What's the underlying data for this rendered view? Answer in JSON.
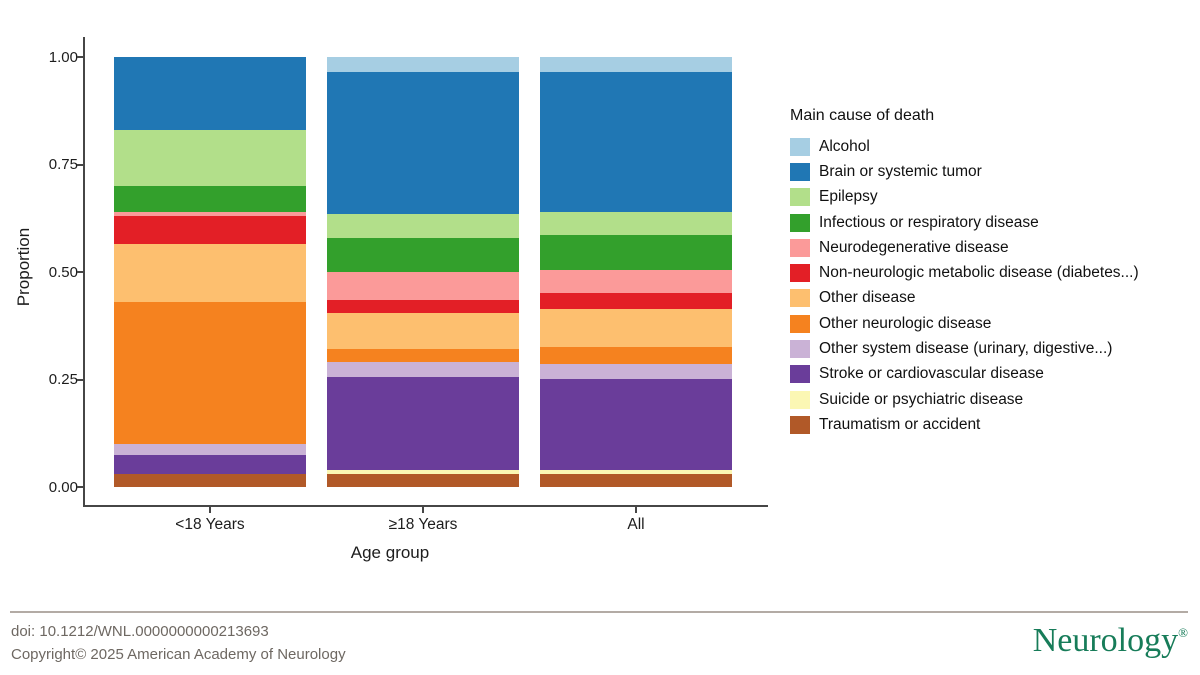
{
  "chart_data": {
    "type": "bar",
    "subtype": "stacked-proportion-bars",
    "title": "",
    "xlabel": "Age group",
    "ylabel": "Proportion",
    "ylim": [
      0,
      1
    ],
    "grid": false,
    "legend_title": "Main cause of death",
    "legend_position": "right",
    "stack_order": "first series at top of bar, last series at bottom",
    "yticks": [
      {
        "label": "1.00",
        "value": 1.0
      },
      {
        "label": "0.75",
        "value": 0.75
      },
      {
        "label": "0.50",
        "value": 0.5
      },
      {
        "label": "0.25",
        "value": 0.25
      },
      {
        "label": "0.00",
        "value": 0.0
      }
    ],
    "categories": [
      "<18 Years",
      "≥18 Years",
      "All"
    ],
    "series": [
      {
        "name": "Alcohol",
        "color": "#a6cee3",
        "values": [
          0.0,
          0.035,
          0.035
        ]
      },
      {
        "name": "Brain or systemic tumor",
        "color": "#2077b4",
        "values": [
          0.17,
          0.33,
          0.325
        ]
      },
      {
        "name": "Epilepsy",
        "color": "#b2df8a",
        "values": [
          0.13,
          0.055,
          0.055
        ]
      },
      {
        "name": "Infectious or respiratory disease",
        "color": "#33a02c",
        "values": [
          0.06,
          0.08,
          0.08
        ]
      },
      {
        "name": "Neurodegenerative disease",
        "color": "#fb9a99",
        "values": [
          0.01,
          0.065,
          0.055
        ]
      },
      {
        "name": "Non-neurologic metabolic disease (diabetes...)",
        "color": "#e31f26",
        "values": [
          0.065,
          0.03,
          0.035
        ]
      },
      {
        "name": "Other disease",
        "color": "#fdbf6f",
        "values": [
          0.135,
          0.085,
          0.09
        ]
      },
      {
        "name": "Other neurologic disease",
        "color": "#f5821f",
        "values": [
          0.33,
          0.03,
          0.04
        ]
      },
      {
        "name": "Other system disease (urinary, digestive...)",
        "color": "#cab2d6",
        "values": [
          0.025,
          0.035,
          0.035
        ]
      },
      {
        "name": "Stroke or cardiovascular disease",
        "color": "#6a3d9a",
        "values": [
          0.045,
          0.215,
          0.21
        ]
      },
      {
        "name": "Suicide or psychiatric disease",
        "color": "#fbf7b4",
        "values": [
          0.0,
          0.01,
          0.01
        ]
      },
      {
        "name": "Traumatism or accident",
        "color": "#b15928",
        "values": [
          0.03,
          0.03,
          0.03
        ]
      }
    ]
  },
  "footer": {
    "doi": "doi: 10.1212/WNL.0000000000213693",
    "copyright": "Copyright© 2025 American Academy of Neurology",
    "logo_text": "Neurology",
    "logo_registered_mark": "®",
    "logo_color": "#177c59"
  }
}
